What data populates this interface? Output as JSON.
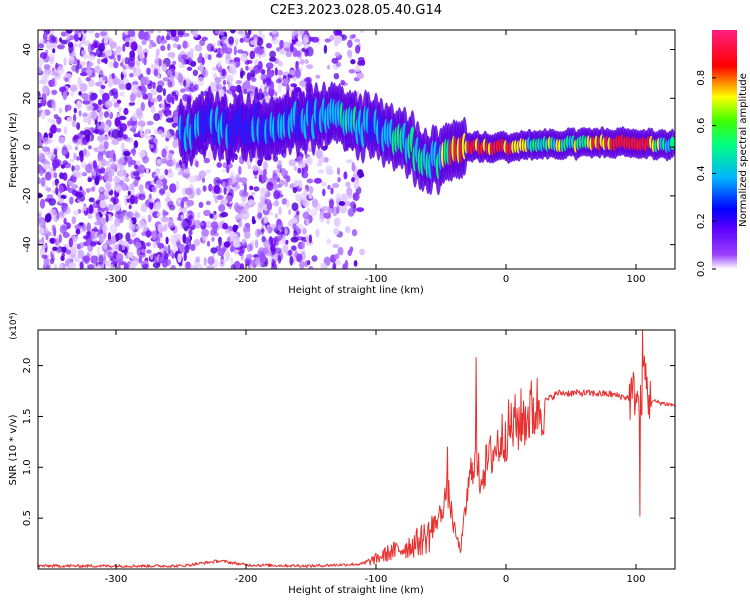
{
  "figure": {
    "title": "C2E3.2023.028.05.40.G14"
  },
  "chart_data": [
    {
      "type": "heatmap",
      "xlabel": "Height of straight line (km)",
      "ylabel": "Frequency (Hz)",
      "xlim": [
        -360,
        130
      ],
      "ylim": [
        -50,
        48
      ],
      "x_ticks": [
        -300,
        -200,
        -100,
        0,
        100
      ],
      "x_tick_labels": [
        "-300",
        "-200",
        "-100",
        "0",
        "100"
      ],
      "y_ticks": [
        -40,
        -20,
        0,
        20,
        40
      ],
      "y_tick_labels": [
        "-40",
        "-20",
        "0",
        "20",
        "40"
      ],
      "colorbar": {
        "label": "Normalized spectral amplitude",
        "range": [
          0,
          1
        ],
        "ticks": [
          0,
          0.2,
          0.4,
          0.6,
          0.8
        ],
        "tick_labels": [
          "0.0",
          "0.2",
          "0.4",
          "0.6",
          "0.8"
        ],
        "colormap": [
          "#ffffff",
          "#7a00ff",
          "#0000ff",
          "#00c8ff",
          "#00ff00",
          "#ffff00",
          "#ff0000",
          "#ff0066"
        ]
      },
      "ridge": {
        "x": [
          -250,
          -240,
          -230,
          -220,
          -210,
          -140,
          -130,
          -120,
          -110,
          -100,
          -90,
          -80,
          -70,
          -60,
          -50,
          -40,
          -30,
          -20,
          -10,
          0,
          20,
          40,
          60,
          80,
          100,
          120,
          130
        ],
        "y": [
          5,
          8,
          10,
          9,
          8,
          12,
          11,
          10,
          9,
          8,
          6,
          3,
          -1,
          -5,
          -4,
          -1,
          0,
          0,
          0,
          0,
          1,
          1,
          1.5,
          2,
          1.5,
          1,
          1
        ],
        "amplitude": [
          0.45,
          0.5,
          0.45,
          0.5,
          0.4,
          0.5,
          0.55,
          0.55,
          0.5,
          0.5,
          0.5,
          0.55,
          0.6,
          0.55,
          0.6,
          0.75,
          0.8,
          0.85,
          0.85,
          0.85,
          0.6,
          0.6,
          0.65,
          0.85,
          0.85,
          0.6,
          0.55
        ]
      },
      "noise_region": {
        "x_range": [
          -360,
          -110
        ],
        "y_range": [
          -50,
          48
        ]
      }
    },
    {
      "type": "line",
      "xlabel": "Height of straight line (km)",
      "ylabel": "SNR (10 * v/v)",
      "y_multiplier": "(x10⁴)",
      "xlim": [
        -360,
        130
      ],
      "ylim": [
        0,
        23500
      ],
      "x_ticks": [
        -300,
        -200,
        -100,
        0,
        100
      ],
      "x_tick_labels": [
        "-300",
        "-200",
        "-100",
        "0",
        "100"
      ],
      "y_ticks": [
        5000,
        10000,
        15000,
        20000
      ],
      "y_tick_labels": [
        "0.5",
        "1.0",
        "1.5",
        "2.0"
      ],
      "color": "#e8312f",
      "x": [
        -360,
        -300,
        -250,
        -220,
        -200,
        -150,
        -110,
        -100,
        -90,
        -80,
        -70,
        -60,
        -50,
        -45,
        -40,
        -35,
        -30,
        -25,
        -20,
        -10,
        0,
        10,
        20,
        30,
        40,
        60,
        80,
        95,
        100,
        103,
        106,
        110,
        120,
        130
      ],
      "y": [
        300,
        300,
        300,
        800,
        400,
        300,
        500,
        1000,
        1600,
        2000,
        2500,
        3300,
        5500,
        8000,
        4000,
        1800,
        7000,
        11000,
        9000,
        11500,
        13500,
        14500,
        15500,
        16500,
        17300,
        17300,
        17200,
        16800,
        17500,
        15000,
        20000,
        16600,
        16300,
        16100
      ],
      "spikes": [
        {
          "x": -45,
          "y": 12000
        },
        {
          "x": -23,
          "y": 20800
        },
        {
          "x": 103,
          "y": 5200
        },
        {
          "x": 105,
          "y": 23500
        }
      ]
    }
  ]
}
